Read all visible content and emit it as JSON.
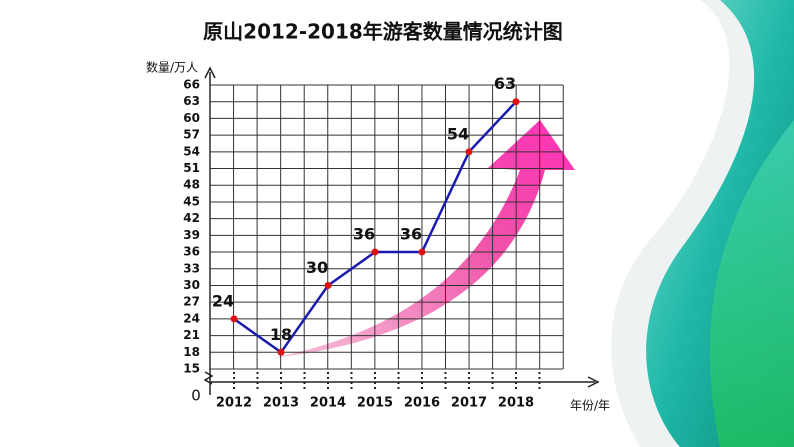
{
  "chart_data": {
    "type": "line",
    "title": "原山2012-2018年游客数量情况统计图",
    "y_label": "数量/万人",
    "x_label": "年份/年",
    "y_origin_label": "0",
    "categories": [
      "2012",
      "2013",
      "2014",
      "2015",
      "2016",
      "2017",
      "2018"
    ],
    "values": [
      24,
      18,
      30,
      36,
      36,
      54,
      63
    ],
    "color": "#1a1ab0",
    "marker_color": "#e01010",
    "ylim": [
      15,
      66
    ],
    "yticks": [
      15,
      18,
      21,
      24,
      27,
      30,
      33,
      36,
      39,
      42,
      45,
      48,
      51,
      54,
      57,
      60,
      63,
      66
    ],
    "grid": true
  }
}
